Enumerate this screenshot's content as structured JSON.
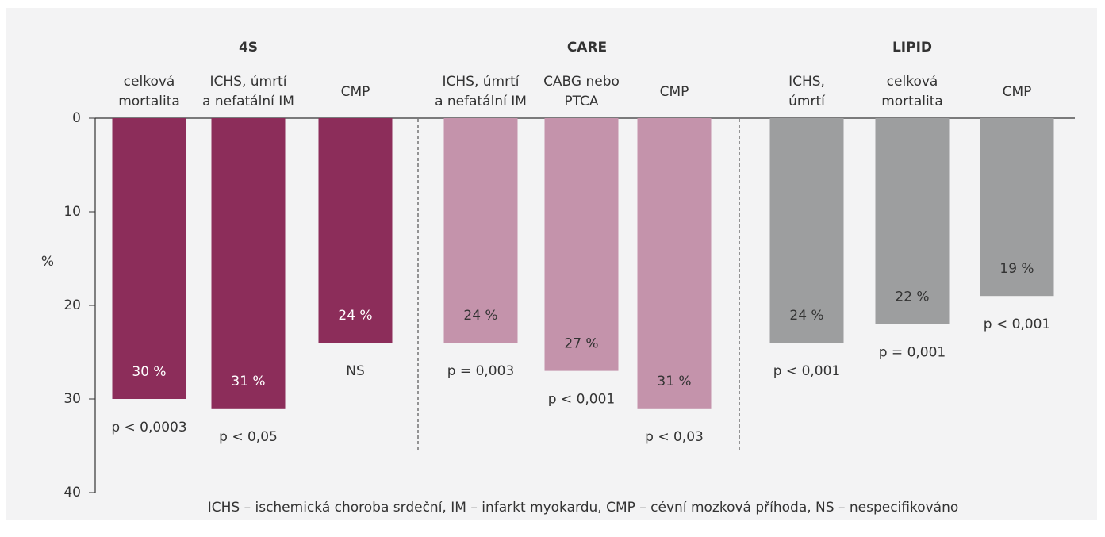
{
  "chart_data": {
    "type": "bar",
    "ylabel": "%",
    "ylim": [
      0,
      40
    ],
    "yticks": [
      0,
      10,
      20,
      30,
      40
    ],
    "inverted": true,
    "groups": [
      {
        "name": "4S",
        "color": "#8c2d5a",
        "label_color": "#ffffff",
        "categories": [
          [
            "celková",
            "mortalita"
          ],
          [
            "ICHS, úmrtí",
            "a nefatální IM"
          ],
          [
            "CMP"
          ]
        ],
        "values": [
          30,
          31,
          24
        ],
        "value_labels": [
          "30 %",
          "31 %",
          "24 %"
        ],
        "annotations": [
          "p < 0,0003",
          "p < 0,05",
          "NS"
        ]
      },
      {
        "name": "CARE",
        "color": "#c493ab",
        "label_color": "#333333",
        "categories": [
          [
            "ICHS, úmrtí",
            "a nefatální IM"
          ],
          [
            "CABG nebo",
            "PTCA"
          ],
          [
            "CMP"
          ]
        ],
        "values": [
          24,
          27,
          31
        ],
        "value_labels": [
          "24 %",
          "27 %",
          "31 %"
        ],
        "annotations": [
          "p = 0,003",
          "p < 0,001",
          "p < 0,03"
        ]
      },
      {
        "name": "LIPID",
        "color": "#9d9e9f",
        "label_color": "#333333",
        "categories": [
          [
            "ICHS,",
            "úmrtí"
          ],
          [
            "celková",
            "mortalita"
          ],
          [
            "CMP"
          ]
        ],
        "values": [
          24,
          22,
          19
        ],
        "value_labels": [
          "24 %",
          "22 %",
          "19 %"
        ],
        "annotations": [
          "p < 0,001",
          "p = 0,001",
          "p < 0,001"
        ]
      }
    ],
    "footnote": "ICHS – ischemická choroba srdeční, IM – infarkt myokardu, CMP – cévní mozková příhoda, NS – nespecifikováno"
  }
}
